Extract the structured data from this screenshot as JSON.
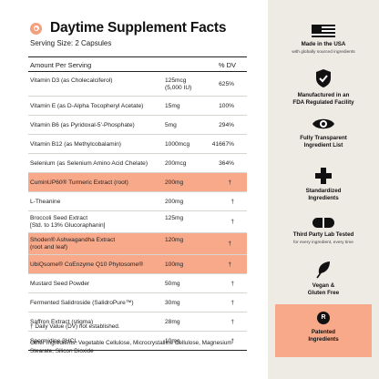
{
  "header": {
    "title": "Daytime Supplement Facts",
    "serving_size": "Serving Size: 2 Capsules"
  },
  "table": {
    "col_amount": "Amount Per Serving",
    "col_dv": "% DV",
    "rows": [
      {
        "name": "Vitamin D3 (as Cholecalciferol)",
        "amount": "125mcg\n(5,000 IU)",
        "dv": "625%",
        "highlight": false
      },
      {
        "name": "Vitamin E (as D-Alpha Tocopheryl Acetate)",
        "amount": "15mg",
        "dv": "100%",
        "highlight": false
      },
      {
        "name": "Vitamin B6 (as Pyridoxal-5'-Phosphate)",
        "amount": "5mg",
        "dv": "294%",
        "highlight": false
      },
      {
        "name": "Vitamin B12 (as Methylcobalamin)",
        "amount": "1000mcg",
        "dv": "41667%",
        "highlight": false
      },
      {
        "name": "Selenium (as Selenium Amino Acid Chelate)",
        "amount": "200mcg",
        "dv": "364%",
        "highlight": false
      },
      {
        "name": "CuminUP60® Turmeric Extract (root)",
        "amount": "200mg",
        "dv": "†",
        "highlight": true
      },
      {
        "name": "L-Theanine",
        "amount": "200mg",
        "dv": "†",
        "highlight": false
      },
      {
        "name": "Broccoli Seed Extract\n[Std. to 13% Glucoraphanin]",
        "amount": "125mg",
        "dv": "†",
        "highlight": false
      },
      {
        "name": "Shoden® Ashwagandha Extract\n(root and leaf)",
        "amount": "120mg",
        "dv": "†",
        "highlight": true
      },
      {
        "name": "UbiQsome® CoEnzyme Q10 Phytosome®",
        "amount": "100mg",
        "dv": "†",
        "highlight": true
      },
      {
        "name": "Mustard Seed Powder",
        "amount": "50mg",
        "dv": "†",
        "highlight": false
      },
      {
        "name": "Fermented Salidroside (SalidroPure™)",
        "amount": "30mg",
        "dv": "†",
        "highlight": false
      },
      {
        "name": "Saffron Extract (stigma)",
        "amount": "28mg",
        "dv": "†",
        "highlight": false
      },
      {
        "name": "Spermidine 3HCL",
        "amount": "10mg",
        "dv": "†",
        "highlight": false
      }
    ]
  },
  "footnote": "† Daily Value (DV) not established.",
  "other_ingredients": "Other Ingredients: Vegetable Cellulose, Microcrystalline Cellulose, Magnesium Stearate, Silicon Dioxide",
  "features": [
    {
      "icon": "us-flag-icon",
      "title": "Made in the USA",
      "subtitle": "with globally sourced ingredients"
    },
    {
      "icon": "shield-check-icon",
      "title": "Manufactured in an\nFDA Regulated Facility",
      "subtitle": ""
    },
    {
      "icon": "eye-icon",
      "title": "Fully Transparent\nIngredient List",
      "subtitle": ""
    },
    {
      "icon": "plus-cross-icon",
      "title": "Standardized\nIngredients",
      "subtitle": ""
    },
    {
      "icon": "capsule-icon",
      "title": "Third Party Lab Tested",
      "subtitle": "for every ingredient, every time"
    },
    {
      "icon": "leaf-icon",
      "title": "Vegan &\nGluten Free",
      "subtitle": ""
    },
    {
      "icon": "registered-icon",
      "title": "Patented\nIngredients",
      "subtitle": "",
      "badge": "R"
    }
  ],
  "colors": {
    "accent": "#f8a98a",
    "panel": "#eeeae4",
    "text": "#1a1a1a"
  }
}
